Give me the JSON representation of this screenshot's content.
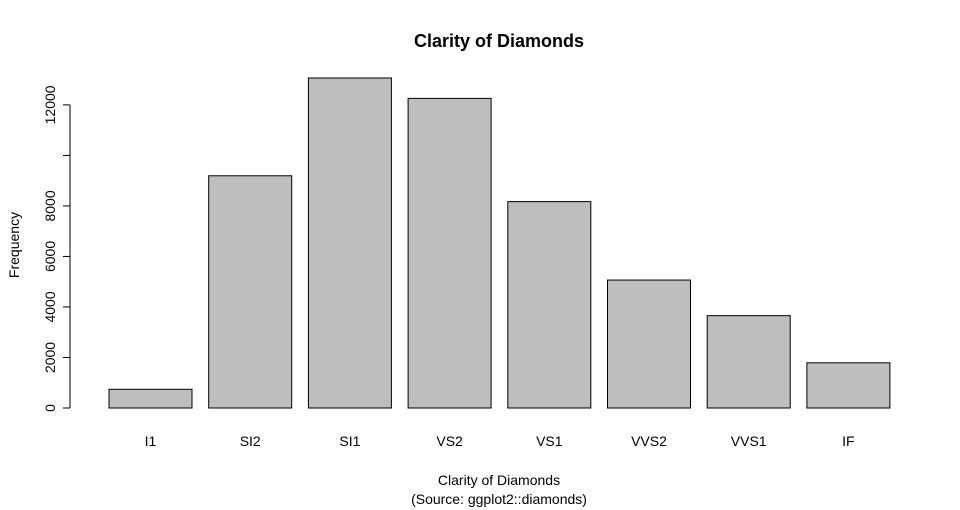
{
  "chart_data": {
    "type": "bar",
    "title": "Clarity of Diamonds",
    "xlabel": "Clarity of Diamonds",
    "xlabel_sub": "(Source: ggplot2::diamonds)",
    "ylabel": "Frequency",
    "categories": [
      "I1",
      "SI2",
      "SI1",
      "VS2",
      "VS1",
      "VVS2",
      "VVS1",
      "IF"
    ],
    "values": [
      741,
      9194,
      13065,
      12258,
      8171,
      5066,
      3655,
      1790
    ],
    "ylim": [
      0,
      13065
    ],
    "yticks": [
      0,
      2000,
      4000,
      6000,
      8000,
      12000
    ],
    "ytick_labels": [
      "0",
      "2000",
      "4000",
      "6000",
      "8000",
      "12000"
    ],
    "bar_color": "#bebebe",
    "grid": false,
    "legend": "none"
  }
}
